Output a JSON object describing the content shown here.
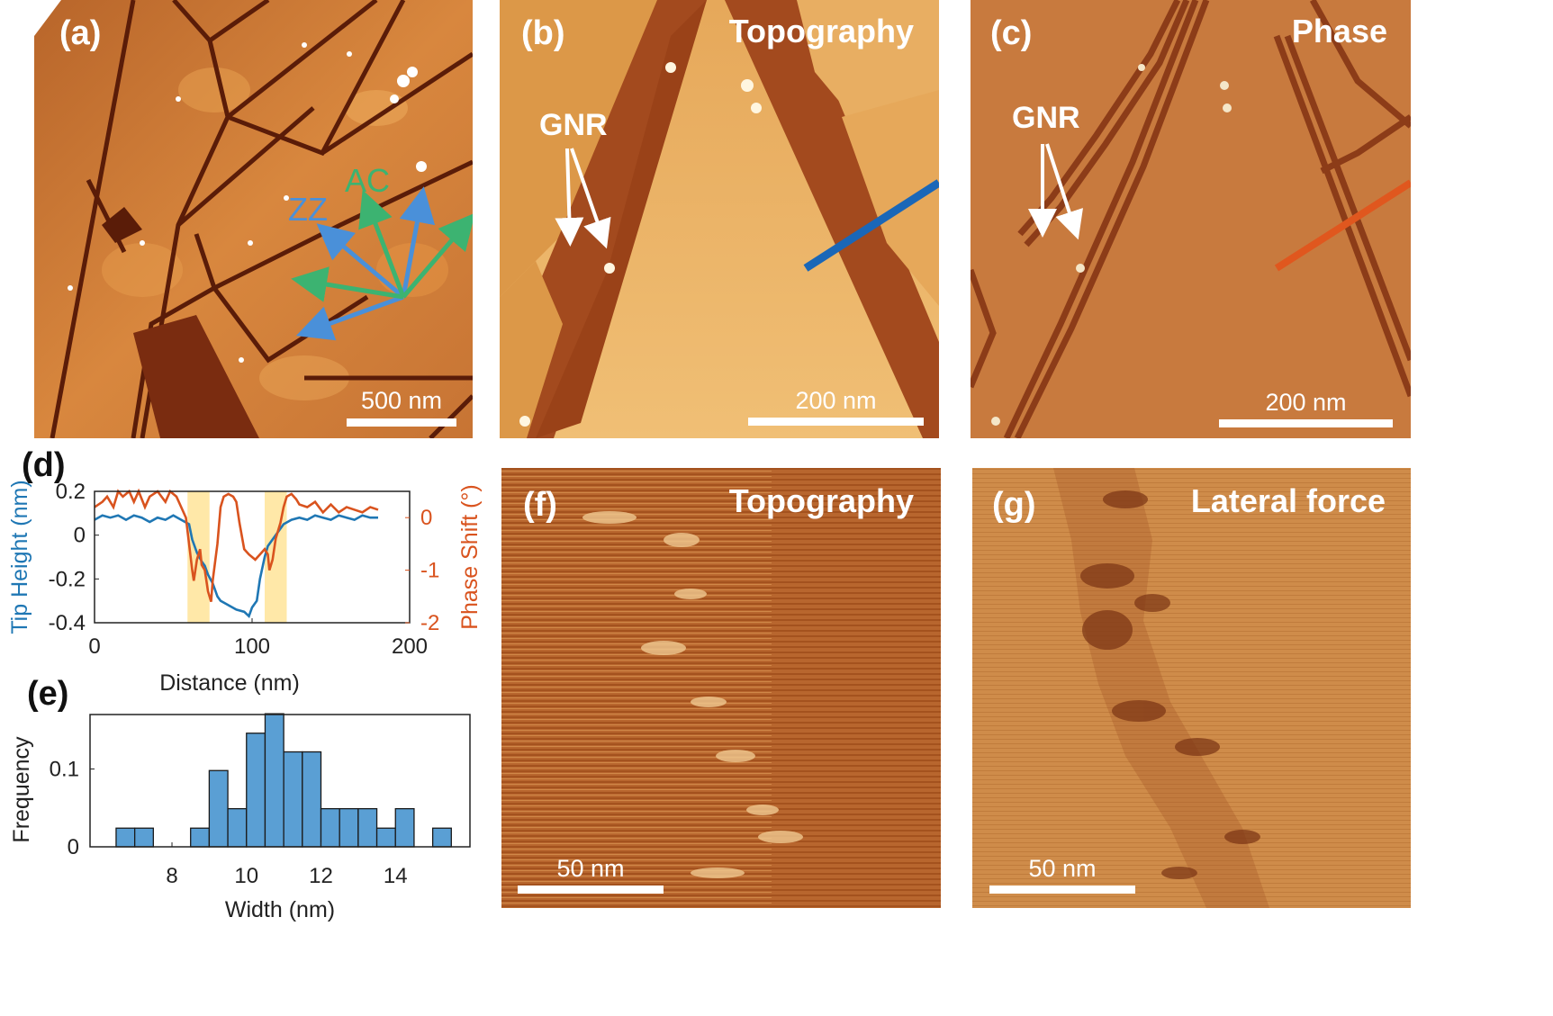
{
  "panels": {
    "a": {
      "label": "(a)",
      "scale_text": "500 nm",
      "dir_zz": "ZZ",
      "dir_ac": "AC"
    },
    "b": {
      "label": "(b)",
      "title": "Topography",
      "gnr": "GNR",
      "scale_text": "200 nm"
    },
    "c": {
      "label": "(c)",
      "title": "Phase",
      "gnr": "GNR",
      "scale_text": "200 nm"
    },
    "d": {
      "label": "(d)"
    },
    "e": {
      "label": "(e)"
    },
    "f": {
      "label": "(f)",
      "title": "Topography",
      "scale_text": "50 nm"
    },
    "g": {
      "label": "(g)",
      "title": "Lateral force",
      "scale_text": "50 nm"
    }
  },
  "colors": {
    "tip_height": "#1f77b4",
    "phase": "#d9531e",
    "highlight": "#ffe8a8",
    "hist": "#5a9fd4",
    "zz": "#4a90d9",
    "ac": "#3cb371"
  },
  "chart_data": [
    {
      "type": "line",
      "xlabel": "Distance (nm)",
      "ylabel": "Tip Height (nm)",
      "ylabel_right": "Phase Shift (°)",
      "xlim": [
        0,
        200
      ],
      "ylim": [
        -0.4,
        0.2
      ],
      "ylim_right": [
        -2,
        0.5
      ],
      "xticks": [
        "0",
        "100",
        "200"
      ],
      "yticks": [
        "0.2",
        "0",
        "-0.2",
        "-0.4"
      ],
      "yticks_right": [
        "0",
        "-1",
        "-2"
      ],
      "highlight_bands": [
        [
          59,
          73
        ],
        [
          108,
          122
        ]
      ],
      "series": [
        {
          "axis": "left",
          "x": [
            0,
            5,
            10,
            15,
            20,
            25,
            30,
            35,
            40,
            45,
            50,
            55,
            60,
            62,
            65,
            68,
            70,
            72,
            75,
            78,
            80,
            85,
            90,
            95,
            98,
            100,
            103,
            105,
            108,
            110,
            113,
            115,
            118,
            120,
            125,
            130,
            135,
            140,
            145,
            150,
            155,
            160,
            165,
            170,
            175,
            180
          ],
          "y": [
            0.07,
            0.09,
            0.08,
            0.09,
            0.07,
            0.09,
            0.08,
            0.06,
            0.08,
            0.07,
            0.09,
            0.07,
            0.05,
            -0.02,
            -0.08,
            -0.12,
            -0.14,
            -0.18,
            -0.22,
            -0.28,
            -0.3,
            -0.32,
            -0.34,
            -0.35,
            -0.37,
            -0.33,
            -0.3,
            -0.2,
            -0.1,
            -0.05,
            -0.02,
            0.0,
            0.03,
            0.05,
            0.07,
            0.08,
            0.07,
            0.09,
            0.08,
            0.07,
            0.09,
            0.08,
            0.07,
            0.09,
            0.08,
            0.08
          ]
        },
        {
          "axis": "right",
          "x": [
            0,
            5,
            8,
            12,
            15,
            18,
            22,
            25,
            28,
            32,
            35,
            40,
            45,
            48,
            52,
            55,
            58,
            60,
            62,
            63,
            65,
            67,
            68,
            70,
            72,
            74,
            75,
            78,
            80,
            82,
            85,
            88,
            90,
            92,
            95,
            98,
            100,
            102,
            105,
            108,
            110,
            111,
            113,
            115,
            118,
            120,
            122,
            125,
            128,
            130,
            135,
            140,
            145,
            150,
            155,
            160,
            165,
            170,
            175,
            180
          ],
          "y": [
            0.2,
            0.3,
            0.4,
            0.2,
            0.5,
            0.4,
            0.5,
            0.3,
            0.5,
            0.2,
            0.4,
            0.5,
            0.3,
            0.5,
            0.4,
            0.2,
            0.0,
            -0.5,
            -1.0,
            -1.2,
            -0.8,
            -0.6,
            -0.9,
            -1.0,
            -1.4,
            -1.6,
            -1.2,
            -0.5,
            0.2,
            0.4,
            0.45,
            0.4,
            0.3,
            -0.1,
            -0.6,
            -0.7,
            -0.75,
            -0.8,
            -0.7,
            -0.6,
            -0.7,
            -1.0,
            -0.8,
            -0.4,
            -0.1,
            0.2,
            0.4,
            0.45,
            0.35,
            0.25,
            0.2,
            0.3,
            0.1,
            0.25,
            0.1,
            0.2,
            0.15,
            0.1,
            0.2,
            0.15
          ]
        }
      ]
    },
    {
      "type": "bar",
      "xlabel": "Width (nm)",
      "ylabel": "Frequency",
      "xlim": [
        5.8,
        16
      ],
      "ylim": [
        0,
        0.17
      ],
      "xticks": [
        "8",
        "10",
        "12",
        "14"
      ],
      "yticks": [
        "0",
        "0.1"
      ],
      "bin_width": 0.5,
      "bin_centers": [
        6.75,
        7.25,
        8.75,
        9.25,
        9.75,
        10.25,
        10.75,
        11.25,
        11.75,
        12.25,
        12.75,
        13.25,
        13.75,
        14.25,
        15.25
      ],
      "values": [
        0.024,
        0.024,
        0.024,
        0.098,
        0.049,
        0.146,
        0.171,
        0.122,
        0.122,
        0.049,
        0.049,
        0.049,
        0.024,
        0.049,
        0.024
      ]
    }
  ]
}
